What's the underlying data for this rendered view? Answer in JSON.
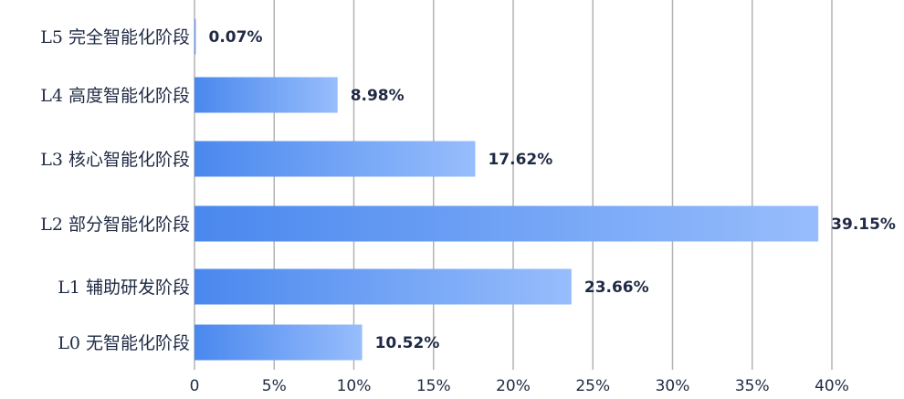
{
  "chart_data": {
    "type": "bar",
    "orientation": "horizontal",
    "categories": [
      "L5  完全智能化阶段",
      "L4  高度智能化阶段",
      "L3  核心智能化阶段",
      "L2  部分智能化阶段",
      "L1  辅助研发阶段",
      "L0  无智能化阶段"
    ],
    "values": [
      0.07,
      8.98,
      17.62,
      39.15,
      23.66,
      10.52
    ],
    "value_labels": [
      "0.07%",
      "8.98%",
      "17.62%",
      "39.15%",
      "23.66%",
      "10.52%"
    ],
    "xlim": [
      0,
      40
    ],
    "xticks": [
      0,
      5,
      10,
      15,
      20,
      25,
      30,
      35,
      40
    ],
    "xtick_labels": [
      "0",
      "5%",
      "10%",
      "15%",
      "20%",
      "25%",
      "30%",
      "35%",
      "40%"
    ],
    "grid": "vertical",
    "colors": {
      "bar_start": "#4a88ee",
      "bar_end": "#97bdfc",
      "text": "#1f2a44",
      "grid": "#b3b3b3"
    }
  }
}
